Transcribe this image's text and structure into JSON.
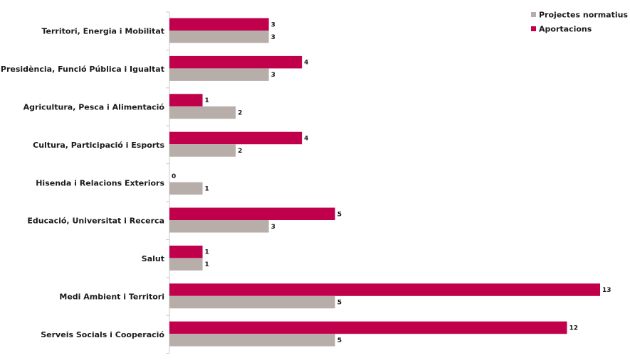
{
  "chart_data": {
    "type": "bar",
    "orientation": "horizontal",
    "categories": [
      "Territori, Energia i Mobilitat",
      "Presidència, Funció Pública i Igualtat",
      "Agricultura, Pesca i Alimentació",
      "Cultura, Participació i Esports",
      "Hisenda i Relacions Exteriors",
      "Educació, Universitat i Recerca",
      "Salut",
      "Medi Ambient i Territori",
      "Serveis Socials i Cooperació"
    ],
    "series": [
      {
        "name": "Aportacions",
        "color": "#c0004a",
        "values": [
          3,
          4,
          1,
          4,
          0,
          5,
          1,
          13,
          12
        ]
      },
      {
        "name": "Projectes normatius",
        "color": "#b7aeaa",
        "values": [
          3,
          3,
          2,
          2,
          1,
          3,
          1,
          5,
          5
        ]
      }
    ],
    "legend_order": [
      "Projectes normatius",
      "Aportacions"
    ],
    "legend_position": "top-right",
    "xlim": [
      0,
      13
    ],
    "grid": false,
    "title": "",
    "xlabel": "",
    "ylabel": ""
  }
}
